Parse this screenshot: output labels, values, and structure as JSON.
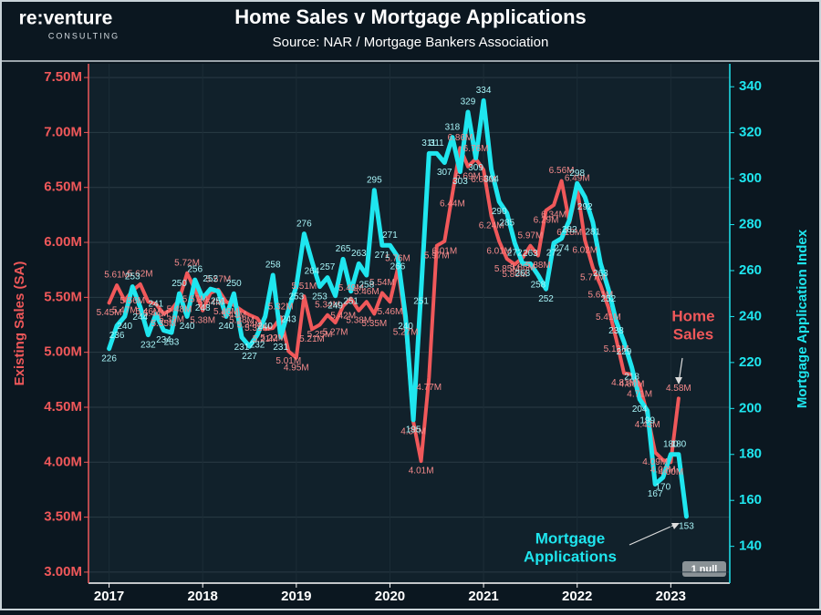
{
  "logo": {
    "name": "re:venture",
    "tagline": "CONSULTING"
  },
  "chart_data": {
    "type": "dual_line",
    "title": "Home Sales v Mortgage Applications",
    "subtitle": "Source: NAR / Mortgage Bankers Association",
    "ylabel": "Existing Sales (SA)",
    "y2label": "Mortgage Application Index",
    "annotations": [
      {
        "lines": [
          "Home",
          "Sales"
        ]
      },
      {
        "lines": [
          "Mortgage",
          "Applications"
        ]
      }
    ],
    "null_note": "1 null",
    "xlim": [
      2016.78,
      2023.63
    ],
    "xticks": [
      2017,
      2018,
      2019,
      2020,
      2021,
      2022,
      2023
    ],
    "ylim": [
      2900000,
      7625000
    ],
    "yticks": [
      {
        "value": 3000000,
        "label": "3.00M"
      },
      {
        "value": 3500000,
        "label": "3.50M"
      },
      {
        "value": 4000000,
        "label": "4.00M"
      },
      {
        "value": 4500000,
        "label": "4.50M"
      },
      {
        "value": 5000000,
        "label": "5.00M"
      },
      {
        "value": 5500000,
        "label": "5.50M"
      },
      {
        "value": 6000000,
        "label": "6.00M"
      },
      {
        "value": 6500000,
        "label": "6.50M"
      },
      {
        "value": 7000000,
        "label": "7.00M"
      },
      {
        "value": 7500000,
        "label": "7.50M"
      }
    ],
    "y2lim": [
      124,
      350
    ],
    "y2ticks": [
      140,
      160,
      180,
      200,
      220,
      240,
      260,
      280,
      300,
      320,
      340
    ],
    "grid": true,
    "x": [
      2017,
      2017.083,
      2017.167,
      2017.25,
      2017.333,
      2017.417,
      2017.5,
      2017.583,
      2017.667,
      2017.75,
      2017.833,
      2017.917,
      2018,
      2018.083,
      2018.167,
      2018.25,
      2018.333,
      2018.417,
      2018.5,
      2018.583,
      2018.667,
      2018.75,
      2018.833,
      2018.917,
      2019,
      2019.083,
      2019.167,
      2019.25,
      2019.333,
      2019.417,
      2019.5,
      2019.583,
      2019.667,
      2019.75,
      2019.833,
      2019.917,
      2020,
      2020.083,
      2020.167,
      2020.25,
      2020.333,
      2020.417,
      2020.5,
      2020.583,
      2020.667,
      2020.75,
      2020.833,
      2020.917,
      2021,
      2021.083,
      2021.167,
      2021.25,
      2021.333,
      2021.417,
      2021.5,
      2021.583,
      2021.667,
      2021.75,
      2021.833,
      2021.917,
      2022,
      2022.083,
      2022.167,
      2022.25,
      2022.333,
      2022.417,
      2022.5,
      2022.583,
      2022.667,
      2022.75,
      2022.833,
      2022.917,
      2023,
      2023.083,
      2023.167
    ],
    "series": [
      {
        "name": "Home Sales",
        "color": "#f0585a",
        "axis": "y",
        "values": [
          5450000,
          5610000,
          5470000,
          5560000,
          5620000,
          5460000,
          5440000,
          5350000,
          5390000,
          5480000,
          5720000,
          5570000,
          5380000,
          5540000,
          5570000,
          5460000,
          5430000,
          5380000,
          5340000,
          5310000,
          5210000,
          5220000,
          5320000,
          5010000,
          4950000,
          5510000,
          5210000,
          5250000,
          5340000,
          5270000,
          5420000,
          5490000,
          5380000,
          5460000,
          5350000,
          5540000,
          5460000,
          5760000,
          5270000,
          4370000,
          4010000,
          4770000,
          5970000,
          6010000,
          6440000,
          6860000,
          6690000,
          6760000,
          6660000,
          6240000,
          6010000,
          5850000,
          5800000,
          5860000,
          5970000,
          5880000,
          6290000,
          6340000,
          6560000,
          6180000,
          6490000,
          6020000,
          5770000,
          5610000,
          5410000,
          5120000,
          4810000,
          4800000,
          4710000,
          4430000,
          4090000,
          4020000,
          4000000,
          4580000,
          null
        ],
        "value_labels": [
          "5.45M",
          "5.61M",
          "5.47M",
          "5.56M",
          "5.62M",
          "5.46M",
          "5.44M",
          "5.35M",
          "5.39M",
          "5.48M",
          "5.72M",
          "5.57M",
          "5.38M",
          "5.54M",
          "5.57M",
          "5.46M",
          "5.43M",
          "5.38M",
          "5.34M",
          "5.31M",
          "5.21M",
          "5.22M",
          "5.32M",
          "5.01M",
          "4.95M",
          "5.51M",
          "5.21M",
          "5.25M",
          "5.34M",
          "5.27M",
          "5.42M",
          "5.49M",
          "5.38M",
          "5.46M",
          "5.35M",
          "5.54M",
          "5.46M",
          "5.76M",
          "5.27M",
          "4.37M",
          "4.01M",
          "4.77M",
          "5.97M",
          "6.01M",
          "6.44M",
          "6.86M",
          "6.69M",
          "6.76M",
          "6.66M",
          "6.24M",
          "6.01M",
          "5.85M",
          "5.80M",
          "5.86M",
          "5.97M",
          "5.88M",
          "6.29M",
          "6.34M",
          "6.56M",
          "6.18M",
          "6.49M",
          "6.02M",
          "5.77M",
          "5.61M",
          "5.41M",
          "5.12M",
          "4.81M",
          "4.80M",
          "4.71M",
          "4.43M",
          "4.09M",
          "4.02M",
          "4.00M",
          "4.58M",
          null
        ]
      },
      {
        "name": "Mortgage Applications",
        "color": "#1fe6ef",
        "axis": "y2",
        "values": [
          226,
          236,
          240,
          253,
          244,
          232,
          241,
          234,
          233,
          250,
          240,
          256,
          248,
          252,
          251,
          240,
          250,
          231,
          227,
          232,
          240,
          258,
          231,
          243,
          253,
          276,
          264,
          253,
          257,
          249,
          265,
          251,
          263,
          258,
          295,
          271,
          271,
          266,
          240,
          195,
          251,
          311,
          311,
          307,
          318,
          303,
          329,
          309,
          334,
          304,
          290,
          285,
          272,
          263,
          263,
          258,
          252,
          272,
          274,
          282,
          298,
          292,
          281,
          263,
          252,
          238,
          229,
          218,
          204,
          199,
          167,
          170,
          180,
          180,
          153
        ]
      }
    ]
  }
}
